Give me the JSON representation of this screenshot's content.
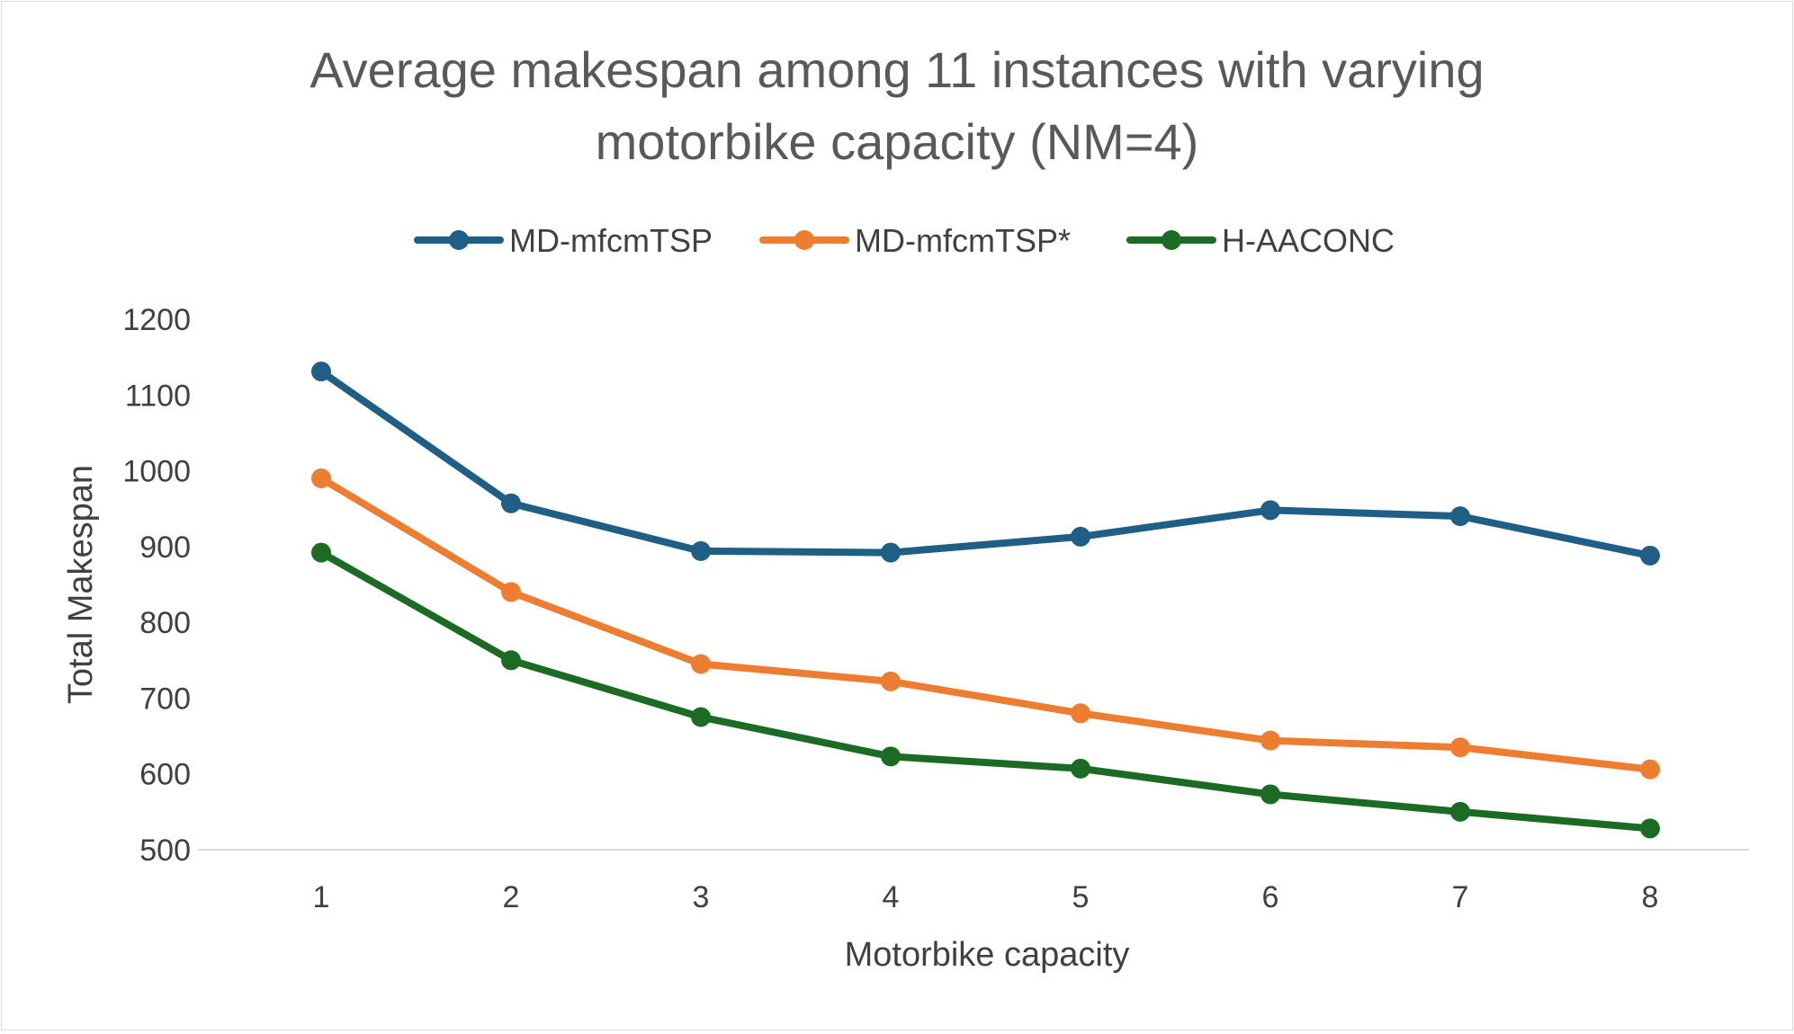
{
  "chart_data": {
    "type": "line",
    "title_lines": [
      "Average makespan among 11 instances with varying",
      "motorbike capacity (NM=4)"
    ],
    "xlabel": "Motorbike capacity",
    "ylabel": "Total Makespan",
    "categories": [
      "1",
      "2",
      "3",
      "4",
      "5",
      "6",
      "7",
      "8"
    ],
    "y_ticks": [
      "500",
      "600",
      "700",
      "800",
      "900",
      "1000",
      "1100",
      "1200"
    ],
    "ylim": [
      500,
      1200
    ],
    "grid": false,
    "legend_position": "top",
    "series": [
      {
        "name": "MD-mfcmTSP",
        "color": "#1f5f85",
        "values": [
          1131,
          957,
          894,
          892,
          913,
          948,
          940,
          888
        ]
      },
      {
        "name": "MD-mfcmTSP*",
        "color": "#ed7d31",
        "values": [
          990,
          840,
          745,
          722,
          680,
          644,
          635,
          606
        ]
      },
      {
        "name": "H-AACONC",
        "color": "#1b6b24",
        "values": [
          892,
          750,
          675,
          623,
          607,
          573,
          550,
          528
        ]
      }
    ]
  }
}
